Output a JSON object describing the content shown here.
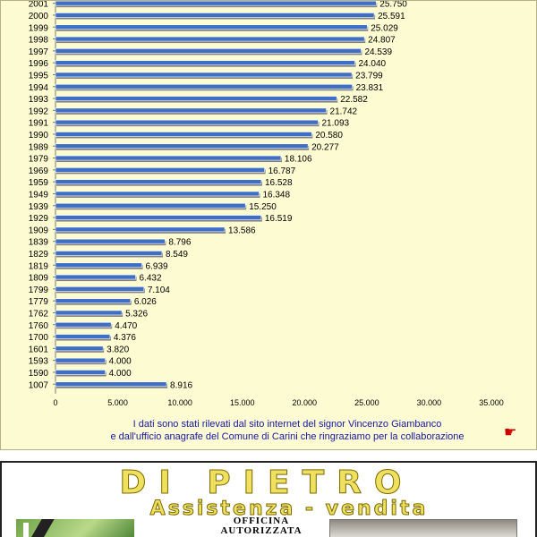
{
  "chart_data": {
    "type": "bar",
    "orientation": "horizontal",
    "categories": [
      "2001",
      "2000",
      "1999",
      "1998",
      "1997",
      "1996",
      "1995",
      "1994",
      "1993",
      "1992",
      "1991",
      "1990",
      "1989",
      "1979",
      "1969",
      "1959",
      "1949",
      "1939",
      "1929",
      "1909",
      "1839",
      "1829",
      "1819",
      "1809",
      "1799",
      "1779",
      "1762",
      "1760",
      "1700",
      "1601",
      "1593",
      "1590",
      "1007"
    ],
    "values": [
      25750,
      25591,
      25029,
      24807,
      24539,
      24040,
      23799,
      23831,
      22582,
      21742,
      21093,
      20580,
      20277,
      18106,
      16787,
      16528,
      16348,
      15250,
      16519,
      13586,
      8796,
      8549,
      6939,
      6432,
      7104,
      6026,
      5326,
      4470,
      4376,
      3820,
      4000,
      4000,
      8916
    ],
    "value_labels": [
      "25.750",
      "25.591",
      "25.029",
      "24.807",
      "24.539",
      "24.040",
      "23.799",
      "23.831",
      "22.582",
      "21.742",
      "21.093",
      "20.580",
      "20.277",
      "18.106",
      "16.787",
      "16.528",
      "16.348",
      "15.250",
      "16.519",
      "13.586",
      "8.796",
      "8.549",
      "6.939",
      "6.432",
      "7.104",
      "6.026",
      "5.326",
      "4.470",
      "4.376",
      "3.820",
      "4.000",
      "4.000",
      "8.916"
    ],
    "x_ticks": [
      "0",
      "5.000",
      "10.000",
      "15.000",
      "20.000",
      "25.000",
      "30.000",
      "35.000"
    ],
    "xlim": [
      0,
      35000
    ],
    "bar_color": "#3f6fc4",
    "title": "",
    "xlabel": "",
    "ylabel": ""
  },
  "footnote": {
    "line1": "I dati sono stati  rilevati dal sito internet  del signor Vincenzo Giambanco",
    "line2": "e dall'ufficio anagrafe del Comune di Carini che ringraziamo per la collaborazione",
    "pointer_icon": "pointing-hand-icon"
  },
  "ad": {
    "title": "DI PIETRO",
    "subtitle": "Assistenza - vendita",
    "stamp_line1": "OFFICINA",
    "stamp_line2": "AUTORIZZATA"
  }
}
